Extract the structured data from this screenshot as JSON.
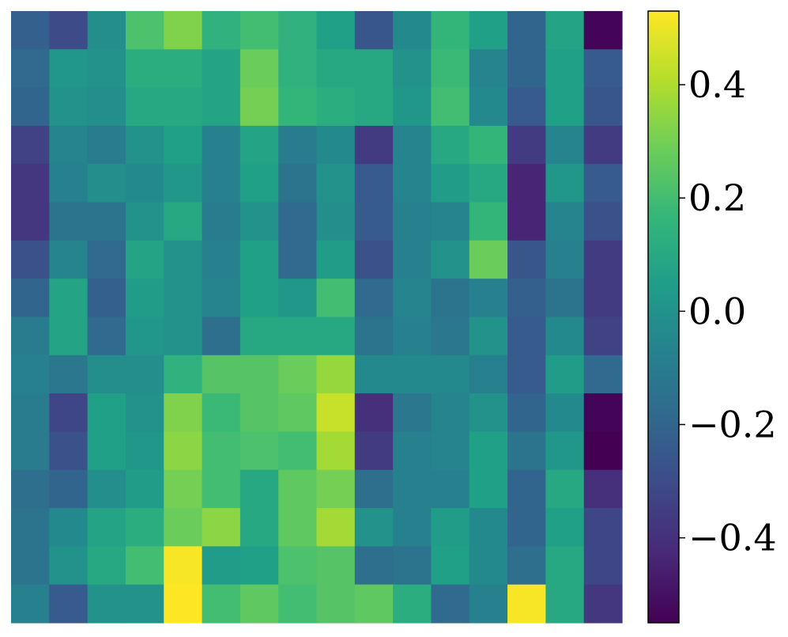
{
  "chart_data": {
    "type": "heatmap",
    "colormap": "viridis",
    "rows": 16,
    "cols": 16,
    "vmin": -0.55,
    "vmax": 0.53,
    "colorbar": {
      "ticks": [
        0.4,
        0.2,
        0.0,
        -0.2,
        -0.4
      ],
      "tick_labels": [
        "0.4",
        "0.2",
        "0.0",
        "−0.2",
        "−0.4"
      ]
    },
    "values": [
      [
        -0.22,
        -0.3,
        -0.02,
        0.22,
        0.32,
        0.14,
        0.2,
        0.14,
        0.06,
        -0.26,
        -0.04,
        0.16,
        0.06,
        -0.2,
        0.08,
        -0.54
      ],
      [
        -0.18,
        0.02,
        0.0,
        0.12,
        0.12,
        0.08,
        0.28,
        0.14,
        0.1,
        0.1,
        0.0,
        0.18,
        -0.06,
        -0.2,
        0.06,
        -0.24
      ],
      [
        -0.2,
        0.0,
        -0.02,
        0.1,
        0.1,
        0.08,
        0.3,
        0.16,
        0.12,
        0.1,
        0.02,
        0.2,
        -0.04,
        -0.24,
        0.06,
        -0.26
      ],
      [
        -0.34,
        -0.06,
        -0.1,
        0.0,
        0.06,
        -0.08,
        0.08,
        -0.1,
        -0.04,
        -0.36,
        -0.06,
        0.1,
        0.16,
        -0.36,
        -0.06,
        -0.36
      ],
      [
        -0.38,
        -0.08,
        -0.02,
        -0.04,
        0.02,
        -0.08,
        0.06,
        -0.14,
        0.0,
        -0.24,
        -0.06,
        0.04,
        0.1,
        -0.44,
        0.02,
        -0.24
      ],
      [
        -0.38,
        -0.14,
        -0.14,
        0.0,
        0.1,
        -0.1,
        0.0,
        -0.18,
        -0.02,
        -0.24,
        -0.08,
        -0.06,
        0.16,
        -0.44,
        -0.06,
        -0.28
      ],
      [
        -0.28,
        -0.06,
        -0.18,
        0.08,
        0.0,
        -0.08,
        0.06,
        -0.18,
        0.04,
        -0.28,
        -0.08,
        0.0,
        0.28,
        -0.26,
        -0.08,
        -0.36
      ],
      [
        -0.2,
        0.08,
        -0.22,
        0.04,
        0.0,
        -0.06,
        0.06,
        0.02,
        0.2,
        -0.18,
        -0.06,
        -0.14,
        -0.08,
        -0.22,
        -0.14,
        -0.36
      ],
      [
        -0.1,
        0.08,
        -0.18,
        0.02,
        0.0,
        -0.16,
        0.1,
        0.1,
        0.1,
        -0.14,
        -0.08,
        -0.12,
        0.0,
        -0.24,
        -0.04,
        -0.34
      ],
      [
        -0.08,
        -0.12,
        -0.02,
        -0.02,
        0.14,
        0.24,
        0.24,
        0.28,
        0.36,
        -0.04,
        -0.04,
        -0.04,
        -0.08,
        -0.24,
        0.04,
        -0.18
      ],
      [
        -0.1,
        -0.32,
        0.06,
        0.0,
        0.32,
        0.18,
        0.24,
        0.26,
        0.44,
        -0.4,
        -0.12,
        -0.06,
        0.0,
        -0.2,
        -0.04,
        -0.54
      ],
      [
        -0.1,
        -0.28,
        0.06,
        0.02,
        0.34,
        0.2,
        0.22,
        0.2,
        0.38,
        -0.36,
        -0.08,
        -0.06,
        0.06,
        -0.14,
        0.02,
        -0.56
      ],
      [
        -0.16,
        -0.2,
        -0.02,
        0.04,
        0.3,
        0.2,
        0.1,
        0.26,
        0.3,
        -0.16,
        -0.08,
        -0.08,
        0.06,
        -0.2,
        0.1,
        -0.4
      ],
      [
        -0.14,
        -0.04,
        0.08,
        0.12,
        0.28,
        0.34,
        0.1,
        0.26,
        0.38,
        0.0,
        -0.08,
        0.04,
        -0.04,
        -0.2,
        0.06,
        -0.32
      ],
      [
        -0.14,
        0.0,
        0.1,
        0.2,
        0.52,
        0.04,
        0.06,
        0.22,
        0.24,
        -0.16,
        -0.14,
        0.06,
        -0.04,
        -0.16,
        0.1,
        -0.32
      ],
      [
        -0.08,
        -0.24,
        0.0,
        0.0,
        0.53,
        0.2,
        0.26,
        0.2,
        0.24,
        0.26,
        0.12,
        -0.18,
        -0.08,
        0.52,
        0.1,
        -0.38
      ]
    ]
  },
  "colors": {
    "viridis": [
      "#440154",
      "#482878",
      "#3e4989",
      "#31688e",
      "#26828e",
      "#1f9e89",
      "#35b779",
      "#6ece58",
      "#b5de2b",
      "#fde725"
    ],
    "axis": "#000000"
  }
}
